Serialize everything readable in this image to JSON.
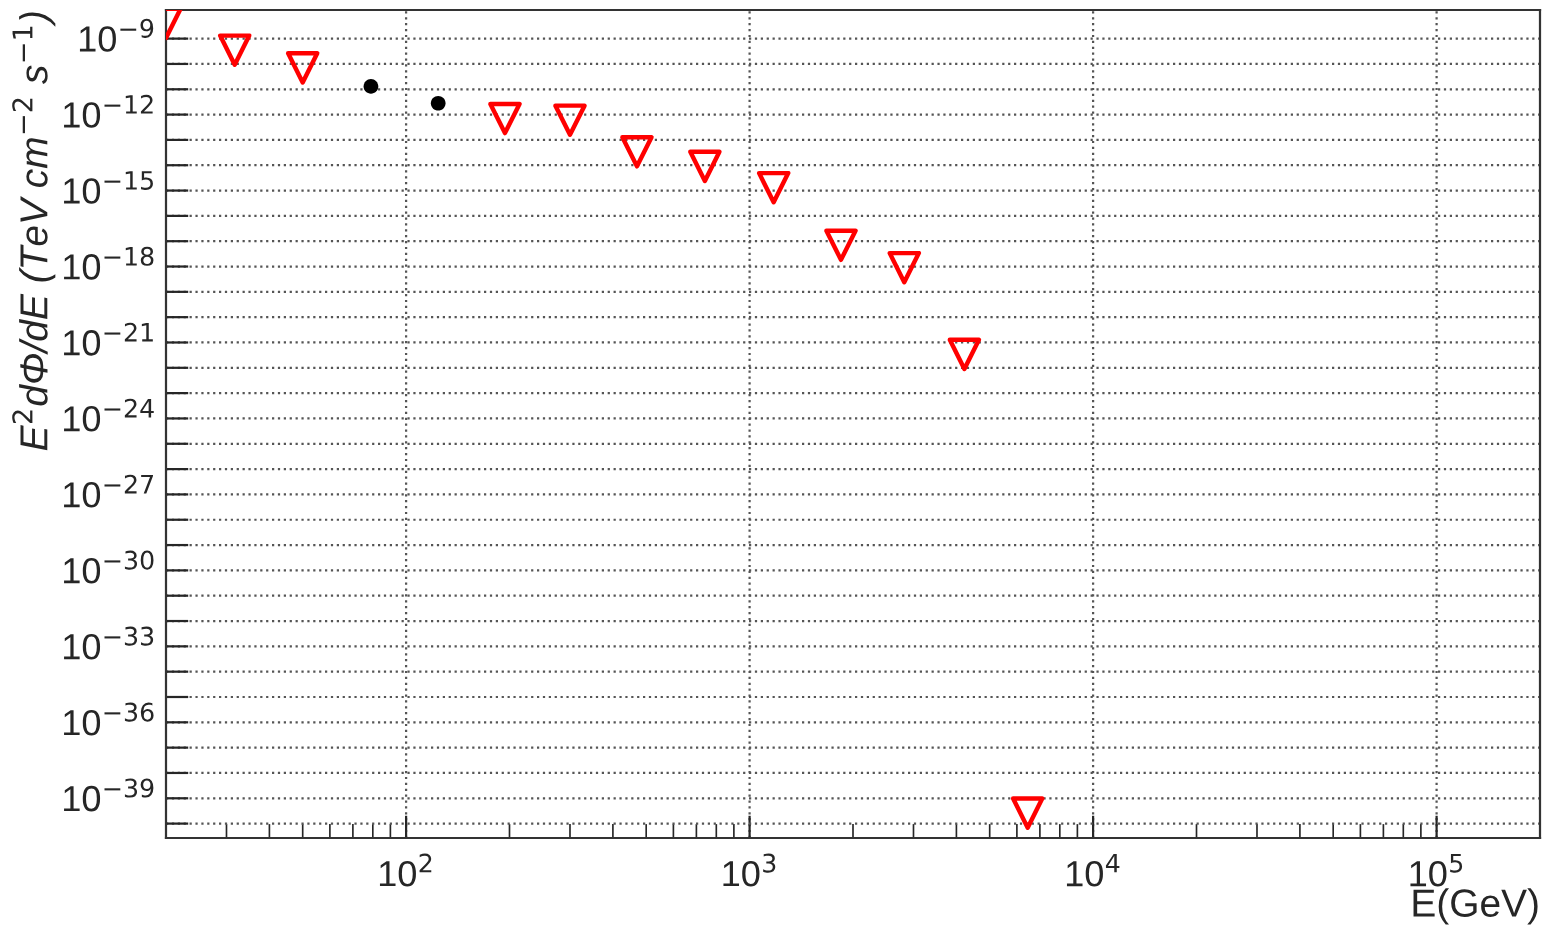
{
  "chart_data": {
    "type": "scatter",
    "xlabel": "E(GeV)",
    "ylabel": "E$^{2}$dΦ/dE (TeV cm$^{−2}$ s$^{−1}$)",
    "log": "xy",
    "grid": true,
    "xlim": [
      20,
      200000
    ],
    "ylim": [
      2.7e-41,
      1.35e-08
    ],
    "xticks": [
      {
        "value": 100,
        "label": "10$^{2}$"
      },
      {
        "value": 1000,
        "label": "10$^{3}$"
      },
      {
        "value": 10000,
        "label": "10$^{4}$"
      },
      {
        "value": 100000,
        "label": "10$^{5}$"
      }
    ],
    "yticks": [
      {
        "value": 1e-40,
        "label": null
      },
      {
        "value": 1e-39,
        "label": "10$^{−39}$"
      },
      {
        "value": 1e-38,
        "label": null
      },
      {
        "value": 1e-37,
        "label": null
      },
      {
        "value": 1e-36,
        "label": "10$^{−36}$"
      },
      {
        "value": 1e-35,
        "label": null
      },
      {
        "value": 1e-34,
        "label": null
      },
      {
        "value": 1e-33,
        "label": "10$^{−33}$"
      },
      {
        "value": 1e-32,
        "label": null
      },
      {
        "value": 1e-31,
        "label": null
      },
      {
        "value": 1e-30,
        "label": "10$^{−30}$"
      },
      {
        "value": 1e-29,
        "label": null
      },
      {
        "value": 1e-28,
        "label": null
      },
      {
        "value": 1e-27,
        "label": "10$^{−27}$"
      },
      {
        "value": 1e-26,
        "label": null
      },
      {
        "value": 1e-25,
        "label": null
      },
      {
        "value": 1e-24,
        "label": "10$^{−24}$"
      },
      {
        "value": 1e-23,
        "label": null
      },
      {
        "value": 1e-22,
        "label": null
      },
      {
        "value": 1e-21,
        "label": "10$^{−21}$"
      },
      {
        "value": 1e-20,
        "label": null
      },
      {
        "value": 1e-19,
        "label": null
      },
      {
        "value": 1e-18,
        "label": "10$^{−18}$"
      },
      {
        "value": 1e-17,
        "label": null
      },
      {
        "value": 1e-16,
        "label": null
      },
      {
        "value": 1e-15,
        "label": "10$^{−15}$"
      },
      {
        "value": 1e-14,
        "label": null
      },
      {
        "value": 1e-13,
        "label": null
      },
      {
        "value": 1e-12,
        "label": "10$^{−12}$"
      },
      {
        "value": 1e-11,
        "label": null
      },
      {
        "value": 1e-10,
        "label": null
      },
      {
        "value": 1e-09,
        "label": "10$^{−9}$"
      }
    ],
    "series": [
      {
        "color": "#ff0000",
        "marker": "triangle",
        "x": [
          20,
          31.7,
          50,
          194,
          300,
          470,
          741,
          1175,
          1845,
          2820,
          4220,
          6450
        ],
        "values": [
          4e-09,
          3.5e-10,
          7e-11,
          7e-13,
          6e-13,
          3.4e-14,
          9e-15,
          1.3e-15,
          6.9e-18,
          9e-19,
          3.4e-22,
          2.6e-40
        ]
      },
      {
        "color": "#000000",
        "marker": "circle",
        "x": [
          79,
          124
        ],
        "values": [
          1.3e-11,
          2.8e-12
        ]
      }
    ]
  }
}
